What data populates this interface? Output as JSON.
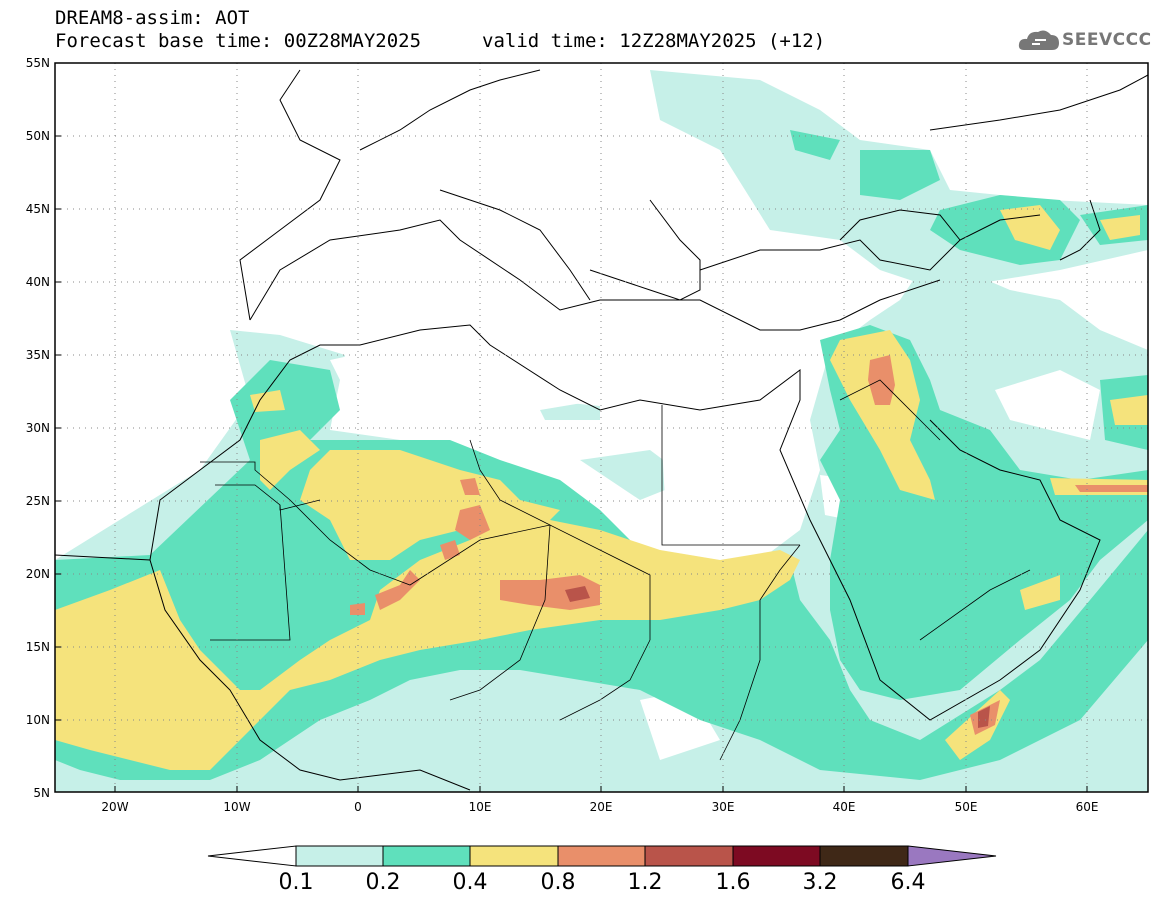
{
  "header": {
    "title": "DREAM8-assim: AOT",
    "base_time": "Forecast base time: 00Z28MAY2025",
    "valid_time": "valid time: 12Z28MAY2025 (+12)"
  },
  "logo": {
    "text": "SEEVCCC",
    "icon": "cloud-logo-icon"
  },
  "map": {
    "lat_labels": [
      "55N",
      "50N",
      "45N",
      "40N",
      "35N",
      "30N",
      "25N",
      "20N",
      "15N",
      "10N",
      "5N"
    ],
    "lon_labels": [
      "20W",
      "10W",
      "0",
      "10E",
      "20E",
      "30E",
      "40E",
      "50E",
      "60E"
    ],
    "grid": "dotted"
  },
  "colorbar": {
    "labels": [
      "0.1",
      "0.2",
      "0.4",
      "0.8",
      "1.2",
      "1.6",
      "3.2",
      "6.4"
    ],
    "colors": [
      "#c6f0e8",
      "#5fe0bc",
      "#f5e37c",
      "#e98f6a",
      "#b9544a",
      "#7d0a22",
      "#3f2817",
      "#9a78c0"
    ]
  },
  "colors": {
    "aot_0_1": "#c6f0e8",
    "aot_0_2": "#5fe0bc",
    "aot_0_4": "#f5e37c",
    "aot_0_8": "#e98f6a",
    "aot_1_2": "#b9544a"
  }
}
